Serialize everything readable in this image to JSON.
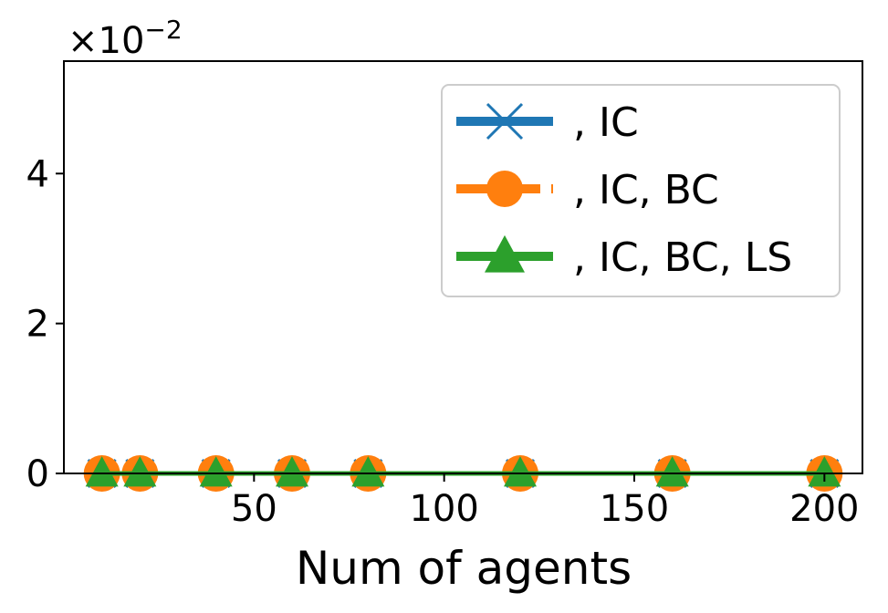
{
  "chart_data": {
    "type": "line",
    "xlabel": "Num of agents",
    "ylabel": "",
    "y_multiplier": {
      "base": "×10",
      "exponent": "−2"
    },
    "xlim": [
      0,
      210
    ],
    "ylim": [
      0,
      5.5
    ],
    "x_ticks": [
      {
        "value": 50,
        "label": "50"
      },
      {
        "value": 100,
        "label": "100"
      },
      {
        "value": 150,
        "label": "150"
      },
      {
        "value": 200,
        "label": "200"
      }
    ],
    "y_ticks": [
      {
        "value": 0,
        "label": "0"
      },
      {
        "value": 2,
        "label": "2"
      },
      {
        "value": 4,
        "label": "4"
      }
    ],
    "x": [
      10,
      20,
      40,
      60,
      80,
      120,
      160,
      200
    ],
    "series": [
      {
        "name": ", IC",
        "color": "#1f77b4",
        "marker": "x",
        "linestyle": "solid",
        "values": [
          0,
          0,
          0,
          0,
          0,
          0,
          0,
          0
        ]
      },
      {
        "name": ", IC, BC",
        "color": "#ff7f0e",
        "marker": "circle",
        "linestyle": "dashed",
        "values": [
          0,
          0,
          0,
          0,
          0,
          0,
          0,
          0
        ]
      },
      {
        "name": ", IC, BC, LS",
        "color": "#2ca02c",
        "marker": "triangle",
        "linestyle": "solid",
        "values": [
          0,
          0,
          0,
          0,
          0,
          0,
          0,
          0
        ]
      }
    ],
    "legend_position": "top-right",
    "grid": false
  }
}
